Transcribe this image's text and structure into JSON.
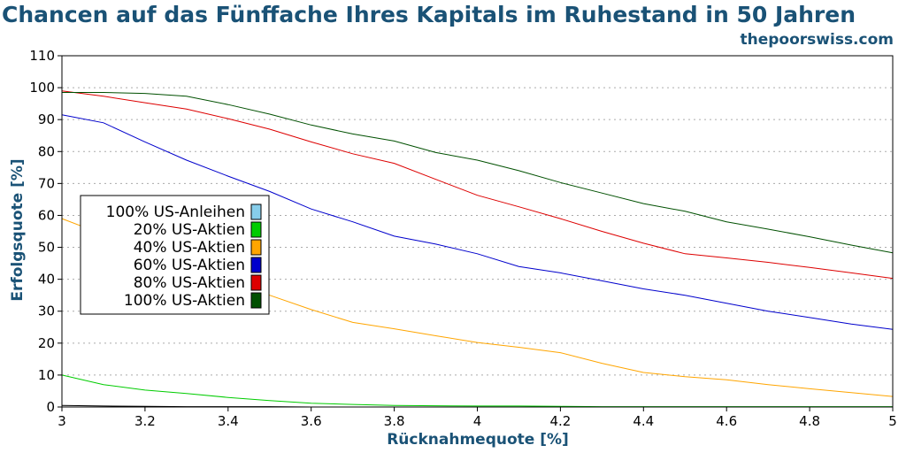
{
  "header": {
    "title": "Chancen auf das Fünffache Ihres Kapitals im Ruhestand in 50 Jahren",
    "site": "thepoorswiss.com"
  },
  "chart_data": {
    "type": "line",
    "title": "Chancen auf das Fünffache Ihres Kapitals im Ruhestand in 50 Jahren",
    "xlabel": "Rücknahmequote [%]",
    "ylabel": "Erfolgsquote [%]",
    "xlim": [
      3,
      5
    ],
    "ylim": [
      0,
      110
    ],
    "xticks": [
      "3",
      "3.2",
      "3.4",
      "3.6",
      "3.8",
      "4",
      "4.2",
      "4.4",
      "4.6",
      "4.8",
      "5"
    ],
    "yticks": [
      "0",
      "10",
      "20",
      "30",
      "40",
      "50",
      "60",
      "70",
      "80",
      "90",
      "100",
      "110"
    ],
    "grid": true,
    "legend_position": "center-left",
    "x": [
      3.0,
      3.1,
      3.2,
      3.3,
      3.4,
      3.5,
      3.6,
      3.7,
      3.8,
      3.9,
      4.0,
      4.1,
      4.2,
      4.3,
      4.4,
      4.5,
      4.6,
      4.7,
      4.8,
      4.9,
      5.0
    ],
    "series": [
      {
        "name": "100% US-Anleihen",
        "color": "#87ceeb",
        "values": [
          0.5,
          0.3,
          0.2,
          0.1,
          0.1,
          0.1,
          0,
          0,
          0,
          0,
          0,
          0,
          0,
          0,
          0,
          0,
          0,
          0,
          0,
          0,
          0
        ]
      },
      {
        "name": "20% US-Aktien",
        "color": "#00cc00",
        "values": [
          10,
          7,
          5.3,
          4.2,
          3,
          2,
          1.2,
          0.8,
          0.5,
          0.4,
          0.3,
          0.3,
          0.2,
          0.1,
          0.1,
          0.1,
          0.1,
          0.1,
          0.1,
          0.1,
          0.1
        ]
      },
      {
        "name": "40% US-Aktien",
        "color": "#ffa500",
        "values": [
          59,
          54,
          47,
          42,
          39,
          35,
          30.5,
          26.5,
          24.5,
          22.3,
          20.2,
          18.7,
          17,
          13.7,
          10.8,
          9.5,
          8.5,
          7,
          5.7,
          4.5,
          3.3
        ]
      },
      {
        "name": "60% US-Aktien",
        "color": "#0000cc",
        "values": [
          91.5,
          89,
          83,
          77.3,
          72.3,
          67.5,
          62,
          58,
          53.5,
          51,
          48,
          44,
          42,
          39.5,
          37,
          35,
          32.5,
          30,
          28,
          26,
          24.3
        ]
      },
      {
        "name": "80% US-Aktien",
        "color": "#dd0000",
        "values": [
          99,
          97.3,
          95.3,
          93.3,
          90.3,
          87,
          83,
          79.3,
          76.3,
          71.3,
          66.3,
          62.7,
          59,
          55,
          51.3,
          48,
          46.7,
          45.3,
          43.7,
          42,
          40.3
        ]
      },
      {
        "name": "100% US-Aktien",
        "color": "#005000",
        "values": [
          98.5,
          98.5,
          98.2,
          97.3,
          94.7,
          91.7,
          88.3,
          85.5,
          83.3,
          79.7,
          77.3,
          74,
          70.3,
          67,
          63.7,
          61.3,
          58,
          55.7,
          53.3,
          50.7,
          48.3
        ]
      }
    ]
  }
}
